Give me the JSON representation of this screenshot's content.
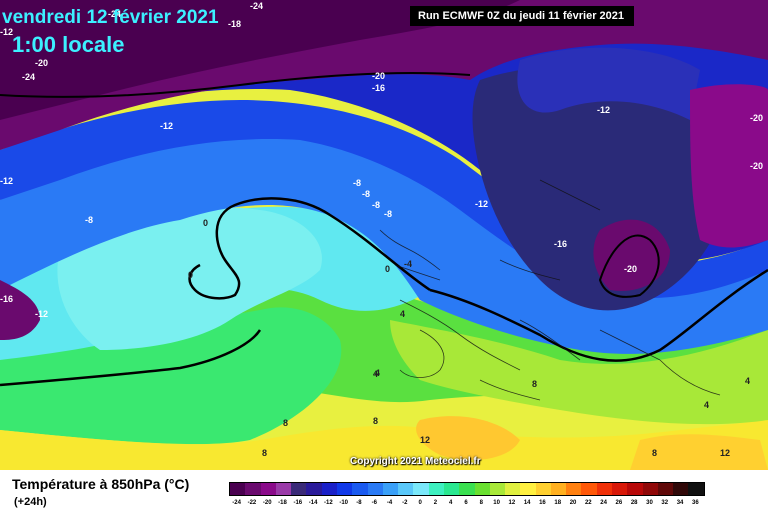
{
  "header": {
    "date": "vendredi 12 février 2021",
    "time": "1:00 locale",
    "run": "Run ECMWF 0Z du jeudi 11 février 2021"
  },
  "copyright": "Copyright 2021 Meteociel.fr",
  "legend": {
    "title": "Température à 850hPa (°C)",
    "subtitle": "(+24h)",
    "labels": [
      "-24",
      "-22",
      "-20",
      "-18",
      "-16",
      "-14",
      "-12",
      "-10",
      "-8",
      "-6",
      "-4",
      "-2",
      "0",
      "2",
      "4",
      "6",
      "8",
      "10",
      "12",
      "14",
      "16",
      "18",
      "20",
      "22",
      "24",
      "26",
      "28",
      "30",
      "32",
      "34",
      "36"
    ],
    "colors": [
      "#4a0050",
      "#6a0a6e",
      "#8a0a8a",
      "#9a3aa8",
      "#3a2a78",
      "#2a1a9a",
      "#1a20c8",
      "#1038e8",
      "#1a5af0",
      "#2a7af5",
      "#3aa0f8",
      "#5ac8fa",
      "#7ae8fa",
      "#3ef0c0",
      "#2ae890",
      "#3ae050",
      "#6ae030",
      "#a8e838",
      "#e0f040",
      "#fff040",
      "#ffd030",
      "#ffb020",
      "#ff8010",
      "#ff5808",
      "#f03008",
      "#d81808",
      "#b80808",
      "#900808",
      "#600808",
      "#300808",
      "#101010"
    ]
  },
  "isotherm_labels": [
    "-24",
    "-24",
    "-24",
    "-18",
    "-20",
    "-20",
    "-16",
    "-12",
    "-12",
    "-8",
    "-8",
    "-8",
    "-8",
    "-12",
    "-12",
    "-16",
    "-20",
    "-20",
    "-20",
    "-8",
    "-12",
    "0",
    "0",
    "0",
    "-4",
    "4",
    "4",
    "4",
    "8",
    "8",
    "8",
    "12",
    "8",
    "12",
    "4",
    "8",
    "4",
    "-16",
    "-12"
  ]
}
